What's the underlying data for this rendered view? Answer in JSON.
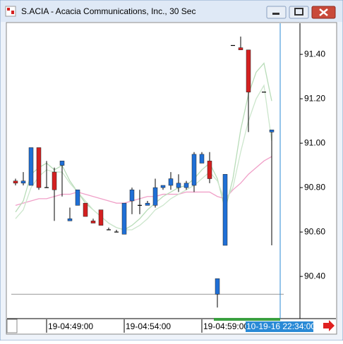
{
  "chart_data": {
    "type": "candlestick",
    "title": "S.ACIA - Acacia Communications, Inc., 30 Sec",
    "categories": [
      null,
      null,
      null,
      null,
      "19-04:49:00",
      null,
      null,
      null,
      null,
      null,
      null,
      null,
      null,
      null,
      "19-04:54:00",
      null,
      null,
      null,
      null,
      null,
      null,
      null,
      null,
      null,
      "19-04:59:00",
      null,
      null,
      null,
      null,
      null,
      null,
      null,
      null,
      null
    ],
    "open": [
      90.83,
      90.82,
      90.81,
      90.98,
      90.8,
      90.87,
      90.9,
      90.65,
      90.72,
      90.73,
      90.65,
      90.7,
      90.61,
      90.6,
      90.59,
      90.74,
      90.72,
      90.72,
      90.72,
      90.8,
      90.81,
      90.8,
      90.8,
      90.81,
      90.91,
      90.92,
      90.32,
      90.54,
      91.44,
      91.43,
      91.42,
      null,
      91.23,
      91.05
    ],
    "high": [
      90.84,
      90.87,
      90.98,
      90.98,
      90.92,
      90.89,
      90.92,
      90.71,
      90.79,
      90.73,
      90.66,
      90.7,
      90.62,
      90.61,
      90.73,
      90.8,
      90.79,
      90.74,
      90.84,
      90.81,
      90.87,
      90.86,
      90.83,
      90.96,
      90.96,
      90.96,
      90.39,
      90.86,
      91.44,
      91.48,
      91.42,
      null,
      91.23,
      91.06
    ],
    "low": [
      90.81,
      90.81,
      90.81,
      90.79,
      90.8,
      90.65,
      90.76,
      90.65,
      90.72,
      90.67,
      90.64,
      90.63,
      90.61,
      90.6,
      90.59,
      90.68,
      90.68,
      90.72,
      90.71,
      90.79,
      90.79,
      90.78,
      90.79,
      90.78,
      90.91,
      90.82,
      90.26,
      90.54,
      91.44,
      91.42,
      91.05,
      null,
      91.23,
      90.54
    ],
    "close": [
      90.82,
      90.83,
      90.98,
      90.8,
      90.8,
      90.79,
      90.92,
      90.66,
      90.79,
      90.67,
      90.64,
      90.63,
      90.61,
      90.6,
      90.73,
      90.79,
      90.72,
      90.73,
      90.8,
      90.81,
      90.84,
      90.82,
      90.82,
      90.95,
      90.95,
      90.84,
      90.39,
      90.86,
      91.44,
      91.42,
      91.23,
      null,
      91.23,
      91.06
    ],
    "up_color": "#1f6fd6",
    "down_color": "#d42020",
    "flat_color": "#000000",
    "overlays": [
      {
        "color": "#f0a0c8",
        "values": [
          90.72,
          90.73,
          90.74,
          90.75,
          90.75,
          90.76,
          90.77,
          90.77,
          90.78,
          90.77,
          90.76,
          90.75,
          90.74,
          90.73,
          90.73,
          90.74,
          90.75,
          90.76,
          90.76,
          90.77,
          90.77,
          90.77,
          90.78,
          90.78,
          90.78,
          90.78,
          90.76,
          90.75,
          90.79,
          90.82,
          90.86,
          90.89,
          90.92,
          90.94
        ]
      },
      {
        "color": "#b8dcb8",
        "values": [
          90.69,
          90.74,
          90.86,
          90.89,
          90.91,
          90.88,
          90.9,
          90.83,
          90.78,
          90.73,
          90.7,
          90.67,
          90.64,
          90.62,
          90.61,
          90.63,
          90.66,
          90.7,
          90.73,
          90.76,
          90.78,
          90.8,
          90.81,
          90.84,
          90.88,
          90.91,
          90.84,
          90.7,
          90.84,
          91.06,
          91.22,
          91.32,
          91.36,
          91.19
        ]
      },
      {
        "color": "#cce6cc",
        "values": [
          90.66,
          90.7,
          90.8,
          90.85,
          90.88,
          90.87,
          90.87,
          90.82,
          90.78,
          90.74,
          90.7,
          90.67,
          90.64,
          90.62,
          90.61,
          90.61,
          90.63,
          90.66,
          90.7,
          90.72,
          90.75,
          90.77,
          90.79,
          90.81,
          90.84,
          90.87,
          90.83,
          90.74,
          90.8,
          90.96,
          91.1,
          91.2,
          91.26,
          91.01
        ]
      }
    ],
    "price_line": 90.32,
    "ylim": [
      90.21,
      91.54
    ],
    "yticks": [
      {
        "value": 90.4,
        "label": "90.40"
      },
      {
        "value": 90.6,
        "label": "90.60"
      },
      {
        "value": 90.8,
        "label": "90.80"
      },
      {
        "value": 91.0,
        "label": "91.00"
      },
      {
        "value": 91.2,
        "label": "91.20"
      },
      {
        "value": 91.4,
        "label": "91.40"
      }
    ],
    "cursor_label": "10-19-16 22:34:00"
  }
}
